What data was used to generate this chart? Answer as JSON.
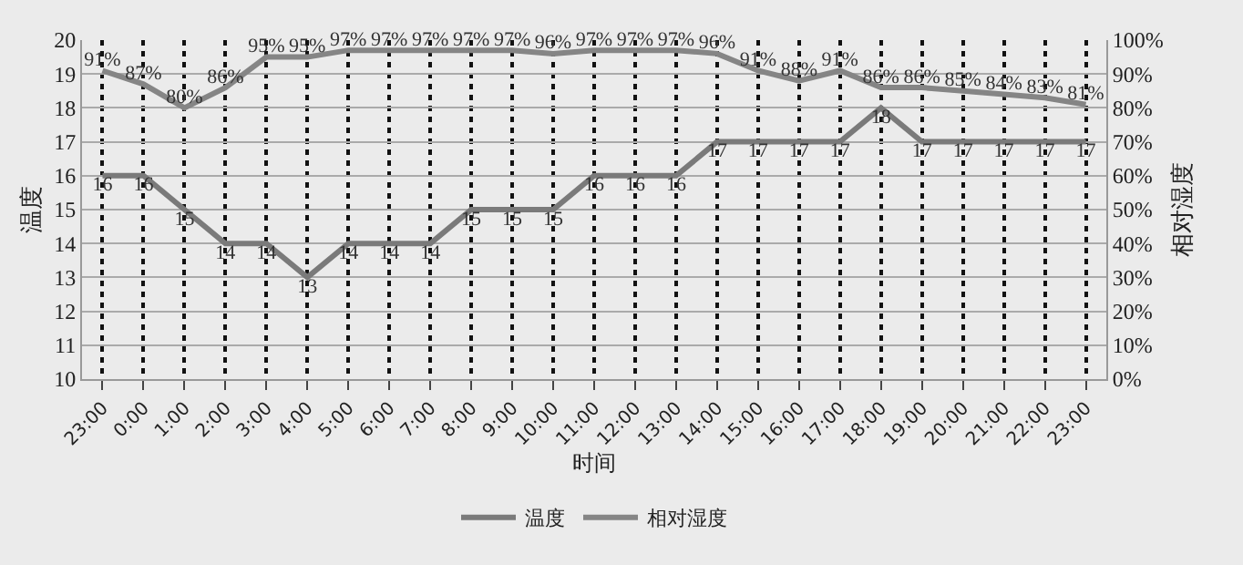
{
  "chart_data": {
    "type": "line",
    "xlabel": "时间",
    "ylabel": "温度",
    "y2label": "相对湿度",
    "categories": [
      "23:00",
      "0:00",
      "1:00",
      "2:00",
      "3:00",
      "4:00",
      "5:00",
      "6:00",
      "7:00",
      "8:00",
      "9:00",
      "10:00",
      "11:00",
      "12:00",
      "13:00",
      "14:00",
      "15:00",
      "16:00",
      "17:00",
      "18:00",
      "19:00",
      "20:00",
      "21:00",
      "22:00",
      "23:00"
    ],
    "series": [
      {
        "name": "温度",
        "color": "#7a7a7a",
        "values": [
          16,
          16,
          15,
          14,
          14,
          13,
          14,
          14,
          14,
          15,
          15,
          15,
          16,
          16,
          16,
          17,
          17,
          17,
          17,
          18,
          17,
          17,
          17,
          17,
          17
        ]
      },
      {
        "name": "相对湿度",
        "color": "#858585",
        "axis": "y2",
        "values": [
          91,
          87,
          80,
          86,
          95,
          95,
          97,
          97,
          97,
          97,
          97,
          96,
          97,
          97,
          97,
          96,
          91,
          88,
          91,
          86,
          86,
          85,
          84,
          83,
          81
        ],
        "value_labels": [
          "91%",
          "87%",
          "80%",
          "86%",
          "95%",
          "95%",
          "97%",
          "97%",
          "97%",
          "97%",
          "97%",
          "96%",
          "97%",
          "97%",
          "97%",
          "96%",
          "91%",
          "88%",
          "91%",
          "86%",
          "86%",
          "85%",
          "84%",
          "83%",
          "81%"
        ]
      }
    ],
    "ylim": [
      10,
      20
    ],
    "yticks": [
      10,
      11,
      12,
      13,
      14,
      15,
      16,
      17,
      18,
      19,
      20
    ],
    "y2lim": [
      0,
      100
    ],
    "y2ticks": [
      {
        "value": 0,
        "label": "0%"
      },
      {
        "value": 10,
        "label": "10%"
      },
      {
        "value": 20,
        "label": "20%"
      },
      {
        "value": 30,
        "label": "30%"
      },
      {
        "value": 40,
        "label": "40%"
      },
      {
        "value": 50,
        "label": "50%"
      },
      {
        "value": 60,
        "label": "60%"
      },
      {
        "value": 70,
        "label": "70%"
      },
      {
        "value": 80,
        "label": "80%"
      },
      {
        "value": 90,
        "label": "90%"
      },
      {
        "value": 100,
        "label": "100%"
      }
    ],
    "grid": true,
    "data_labels": true,
    "legend": "bottom",
    "marker": "none",
    "line_style": "solid"
  }
}
